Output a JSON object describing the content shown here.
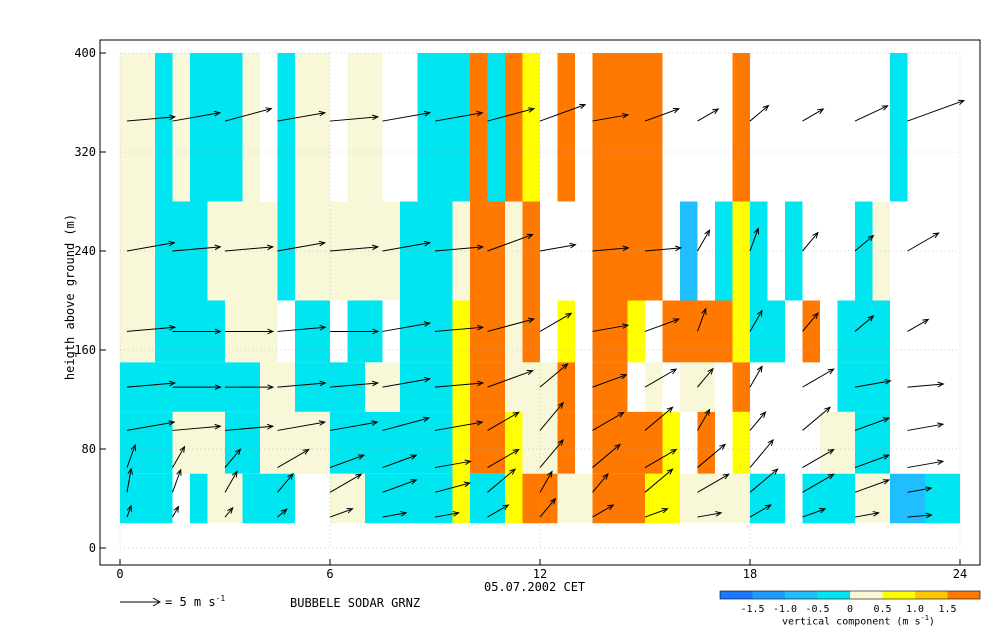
{
  "chart_data": {
    "type": "heatmap",
    "title": "",
    "xlabel": "05.07.2002 CET",
    "ylabel": "heigth above ground (m)",
    "station": "BUBBELE SODAR GRNZ",
    "xlim": [
      0,
      24
    ],
    "ylim": [
      0,
      400
    ],
    "xticks": [
      "0",
      "6",
      "12",
      "18",
      "24"
    ],
    "yticks": [
      "0",
      "80",
      "160",
      "240",
      "320",
      "400"
    ],
    "grid": true,
    "wind_reference": {
      "label": "= 5 m s",
      "superscript": "-1",
      "speed_ms": 5
    },
    "colorbar": {
      "title": "vertical component (m s",
      "title_super": "-1",
      "title_close": ")",
      "tick_labels": [
        "-1.5",
        "-1.0",
        "-0.5",
        "0",
        "0.5",
        "1.0",
        "1.5"
      ],
      "tick_values": [
        -1.5,
        -1.0,
        -0.5,
        0,
        0.5,
        1.0,
        1.5
      ],
      "bins": [
        {
          "min": -2.0,
          "max": -1.5,
          "color": "#1e78ff"
        },
        {
          "min": -1.5,
          "max": -1.0,
          "color": "#1e9bff"
        },
        {
          "min": -1.0,
          "max": -0.5,
          "color": "#1ebeff"
        },
        {
          "min": -0.5,
          "max": 0.0,
          "color": "#00e6f0"
        },
        {
          "min": 0.0,
          "max": 0.5,
          "color": "#f8f8d8"
        },
        {
          "min": 0.5,
          "max": 1.0,
          "color": "#ffff00"
        },
        {
          "min": 1.0,
          "max": 1.5,
          "color": "#ffc800"
        },
        {
          "min": 1.5,
          "max": 2.0,
          "color": "#ff7800"
        }
      ]
    },
    "cells": [
      {
        "x0": 0,
        "x1": 1,
        "y0": 280,
        "y1": 400,
        "value": 0.2
      },
      {
        "x0": 1,
        "x1": 1.5,
        "y0": 280,
        "y1": 400,
        "value": -0.3
      },
      {
        "x0": 1.5,
        "x1": 2,
        "y0": 280,
        "y1": 400,
        "value": 0.2
      },
      {
        "x0": 2,
        "x1": 2.5,
        "y0": 280,
        "y1": 400,
        "value": -0.3
      },
      {
        "x0": 2.5,
        "x1": 3.5,
        "y0": 280,
        "y1": 400,
        "value": -0.3
      },
      {
        "x0": 3.5,
        "x1": 4,
        "y0": 280,
        "y1": 400,
        "value": 0.2
      },
      {
        "x0": 4.5,
        "x1": 5,
        "y0": 280,
        "y1": 400,
        "value": -0.3
      },
      {
        "x0": 5,
        "x1": 6,
        "y0": 280,
        "y1": 400,
        "value": 0.2
      },
      {
        "x0": 6.5,
        "x1": 7.5,
        "y0": 280,
        "y1": 400,
        "value": 0.2
      },
      {
        "x0": 8.5,
        "x1": 10,
        "y0": 280,
        "y1": 400,
        "value": -0.3
      },
      {
        "x0": 10,
        "x1": 10.5,
        "y0": 280,
        "y1": 400,
        "value": 1.7
      },
      {
        "x0": 10.5,
        "x1": 11,
        "y0": 280,
        "y1": 400,
        "value": -0.3
      },
      {
        "x0": 11,
        "x1": 11.5,
        "y0": 280,
        "y1": 400,
        "value": 1.7
      },
      {
        "x0": 11.5,
        "x1": 12,
        "y0": 280,
        "y1": 400,
        "value": 0.7
      },
      {
        "x0": 12.5,
        "x1": 13,
        "y0": 280,
        "y1": 400,
        "value": 1.7
      },
      {
        "x0": 13.5,
        "x1": 15.5,
        "y0": 280,
        "y1": 400,
        "value": 1.7
      },
      {
        "x0": 17.5,
        "x1": 18,
        "y0": 280,
        "y1": 400,
        "value": 1.7
      },
      {
        "x0": 22,
        "x1": 22.5,
        "y0": 280,
        "y1": 400,
        "value": -0.3
      },
      {
        "x0": 0,
        "x1": 1,
        "y0": 200,
        "y1": 280,
        "value": 0.2
      },
      {
        "x0": 1,
        "x1": 2.5,
        "y0": 200,
        "y1": 280,
        "value": -0.3
      },
      {
        "x0": 2.5,
        "x1": 4.5,
        "y0": 200,
        "y1": 280,
        "value": 0.2
      },
      {
        "x0": 4.5,
        "x1": 5,
        "y0": 200,
        "y1": 280,
        "value": -0.3
      },
      {
        "x0": 5,
        "x1": 8,
        "y0": 200,
        "y1": 280,
        "value": 0.2
      },
      {
        "x0": 8,
        "x1": 9.5,
        "y0": 200,
        "y1": 280,
        "value": -0.3
      },
      {
        "x0": 9.5,
        "x1": 10,
        "y0": 200,
        "y1": 280,
        "value": 0.2
      },
      {
        "x0": 10,
        "x1": 11,
        "y0": 200,
        "y1": 280,
        "value": 1.7
      },
      {
        "x0": 11,
        "x1": 11.5,
        "y0": 200,
        "y1": 280,
        "value": 0.2
      },
      {
        "x0": 11.5,
        "x1": 12,
        "y0": 200,
        "y1": 280,
        "value": 1.7
      },
      {
        "x0": 13.5,
        "x1": 15.5,
        "y0": 200,
        "y1": 280,
        "value": 1.7
      },
      {
        "x0": 16,
        "x1": 16.5,
        "y0": 200,
        "y1": 280,
        "value": -0.8
      },
      {
        "x0": 17,
        "x1": 17.5,
        "y0": 200,
        "y1": 280,
        "value": -0.3
      },
      {
        "x0": 17.5,
        "x1": 18,
        "y0": 200,
        "y1": 280,
        "value": 0.7
      },
      {
        "x0": 18,
        "x1": 18.5,
        "y0": 200,
        "y1": 280,
        "value": -0.3
      },
      {
        "x0": 19,
        "x1": 19.5,
        "y0": 200,
        "y1": 280,
        "value": -0.3
      },
      {
        "x0": 21,
        "x1": 21.5,
        "y0": 200,
        "y1": 280,
        "value": -0.3
      },
      {
        "x0": 21.5,
        "x1": 22,
        "y0": 200,
        "y1": 280,
        "value": 0.2
      },
      {
        "x0": 0,
        "x1": 1,
        "y0": 150,
        "y1": 200,
        "value": 0.2
      },
      {
        "x0": 1,
        "x1": 3,
        "y0": 150,
        "y1": 200,
        "value": -0.3
      },
      {
        "x0": 3,
        "x1": 4.5,
        "y0": 150,
        "y1": 200,
        "value": 0.2
      },
      {
        "x0": 5,
        "x1": 6,
        "y0": 150,
        "y1": 200,
        "value": -0.3
      },
      {
        "x0": 6.5,
        "x1": 7.5,
        "y0": 150,
        "y1": 200,
        "value": -0.3
      },
      {
        "x0": 8,
        "x1": 9.5,
        "y0": 150,
        "y1": 200,
        "value": -0.3
      },
      {
        "x0": 9.5,
        "x1": 10,
        "y0": 150,
        "y1": 200,
        "value": 0.7
      },
      {
        "x0": 10,
        "x1": 11,
        "y0": 150,
        "y1": 200,
        "value": 1.7
      },
      {
        "x0": 11,
        "x1": 11.5,
        "y0": 150,
        "y1": 200,
        "value": 0.2
      },
      {
        "x0": 11.5,
        "x1": 12,
        "y0": 150,
        "y1": 200,
        "value": 1.7
      },
      {
        "x0": 12.5,
        "x1": 13,
        "y0": 150,
        "y1": 200,
        "value": 0.7
      },
      {
        "x0": 13.5,
        "x1": 14.5,
        "y0": 150,
        "y1": 200,
        "value": 1.7
      },
      {
        "x0": 14.5,
        "x1": 15,
        "y0": 150,
        "y1": 200,
        "value": 0.7
      },
      {
        "x0": 15.5,
        "x1": 17.5,
        "y0": 150,
        "y1": 200,
        "value": 1.7
      },
      {
        "x0": 17.5,
        "x1": 18,
        "y0": 150,
        "y1": 200,
        "value": 0.7
      },
      {
        "x0": 18,
        "x1": 19,
        "y0": 150,
        "y1": 200,
        "value": -0.3
      },
      {
        "x0": 19.5,
        "x1": 20,
        "y0": 150,
        "y1": 200,
        "value": 1.7
      },
      {
        "x0": 20.5,
        "x1": 22,
        "y0": 150,
        "y1": 200,
        "value": -0.3
      },
      {
        "x0": 0,
        "x1": 4,
        "y0": 110,
        "y1": 150,
        "value": -0.3
      },
      {
        "x0": 4,
        "x1": 5,
        "y0": 110,
        "y1": 150,
        "value": 0.2
      },
      {
        "x0": 5,
        "x1": 7,
        "y0": 110,
        "y1": 150,
        "value": -0.3
      },
      {
        "x0": 7,
        "x1": 8,
        "y0": 110,
        "y1": 150,
        "value": 0.2
      },
      {
        "x0": 8,
        "x1": 9.5,
        "y0": 110,
        "y1": 150,
        "value": -0.3
      },
      {
        "x0": 9.5,
        "x1": 10,
        "y0": 110,
        "y1": 150,
        "value": 0.7
      },
      {
        "x0": 10,
        "x1": 11,
        "y0": 110,
        "y1": 150,
        "value": 1.7
      },
      {
        "x0": 11,
        "x1": 12.5,
        "y0": 110,
        "y1": 150,
        "value": 0.2
      },
      {
        "x0": 12.5,
        "x1": 13,
        "y0": 110,
        "y1": 150,
        "value": 1.7
      },
      {
        "x0": 13.5,
        "x1": 14.5,
        "y0": 110,
        "y1": 150,
        "value": 1.7
      },
      {
        "x0": 15,
        "x1": 15.5,
        "y0": 110,
        "y1": 150,
        "value": 0.2
      },
      {
        "x0": 16,
        "x1": 17,
        "y0": 110,
        "y1": 150,
        "value": 0.2
      },
      {
        "x0": 17.5,
        "x1": 18,
        "y0": 110,
        "y1": 150,
        "value": 1.7
      },
      {
        "x0": 20.5,
        "x1": 22,
        "y0": 110,
        "y1": 150,
        "value": -0.3
      },
      {
        "x0": 0,
        "x1": 1.5,
        "y0": 60,
        "y1": 110,
        "value": -0.3
      },
      {
        "x0": 1.5,
        "x1": 3,
        "y0": 60,
        "y1": 110,
        "value": 0.2
      },
      {
        "x0": 3,
        "x1": 4,
        "y0": 60,
        "y1": 110,
        "value": -0.3
      },
      {
        "x0": 4,
        "x1": 6,
        "y0": 60,
        "y1": 110,
        "value": 0.2
      },
      {
        "x0": 6,
        "x1": 7,
        "y0": 60,
        "y1": 110,
        "value": -0.3
      },
      {
        "x0": 7,
        "x1": 9.5,
        "y0": 60,
        "y1": 110,
        "value": -0.3
      },
      {
        "x0": 9.5,
        "x1": 10,
        "y0": 60,
        "y1": 110,
        "value": 0.7
      },
      {
        "x0": 10,
        "x1": 11,
        "y0": 60,
        "y1": 110,
        "value": 1.7
      },
      {
        "x0": 11,
        "x1": 11.5,
        "y0": 60,
        "y1": 110,
        "value": 0.7
      },
      {
        "x0": 11.5,
        "x1": 12.5,
        "y0": 60,
        "y1": 110,
        "value": 0.2
      },
      {
        "x0": 12.5,
        "x1": 13,
        "y0": 60,
        "y1": 110,
        "value": 1.7
      },
      {
        "x0": 13.5,
        "x1": 15.5,
        "y0": 60,
        "y1": 110,
        "value": 1.7
      },
      {
        "x0": 15.5,
        "x1": 16,
        "y0": 60,
        "y1": 110,
        "value": 0.7
      },
      {
        "x0": 16.5,
        "x1": 17,
        "y0": 60,
        "y1": 110,
        "value": 1.7
      },
      {
        "x0": 17.5,
        "x1": 18,
        "y0": 60,
        "y1": 110,
        "value": 0.7
      },
      {
        "x0": 20,
        "x1": 21,
        "y0": 60,
        "y1": 110,
        "value": 0.2
      },
      {
        "x0": 21,
        "x1": 22,
        "y0": 60,
        "y1": 110,
        "value": -0.3
      },
      {
        "x0": 0,
        "x1": 1.5,
        "y0": 20,
        "y1": 60,
        "value": -0.3
      },
      {
        "x0": 2,
        "x1": 2.5,
        "y0": 20,
        "y1": 60,
        "value": -0.3
      },
      {
        "x0": 2.5,
        "x1": 3.5,
        "y0": 20,
        "y1": 60,
        "value": 0.2
      },
      {
        "x0": 3.5,
        "x1": 4,
        "y0": 20,
        "y1": 60,
        "value": -0.3
      },
      {
        "x0": 4,
        "x1": 5,
        "y0": 20,
        "y1": 60,
        "value": -0.3
      },
      {
        "x0": 6,
        "x1": 7,
        "y0": 20,
        "y1": 60,
        "value": 0.2
      },
      {
        "x0": 7,
        "x1": 9.5,
        "y0": 20,
        "y1": 60,
        "value": -0.3
      },
      {
        "x0": 9.5,
        "x1": 10,
        "y0": 20,
        "y1": 60,
        "value": 0.7
      },
      {
        "x0": 10,
        "x1": 11,
        "y0": 20,
        "y1": 60,
        "value": -0.3
      },
      {
        "x0": 11,
        "x1": 11.5,
        "y0": 20,
        "y1": 60,
        "value": 0.7
      },
      {
        "x0": 11.5,
        "x1": 12.5,
        "y0": 20,
        "y1": 60,
        "value": 1.7
      },
      {
        "x0": 12.5,
        "x1": 13.5,
        "y0": 20,
        "y1": 60,
        "value": 0.2
      },
      {
        "x0": 13.5,
        "x1": 15,
        "y0": 20,
        "y1": 60,
        "value": 1.7
      },
      {
        "x0": 15,
        "x1": 16,
        "y0": 20,
        "y1": 60,
        "value": 0.7
      },
      {
        "x0": 16,
        "x1": 18,
        "y0": 20,
        "y1": 60,
        "value": 0.2
      },
      {
        "x0": 18,
        "x1": 19,
        "y0": 20,
        "y1": 60,
        "value": -0.3
      },
      {
        "x0": 19.5,
        "x1": 21,
        "y0": 20,
        "y1": 60,
        "value": -0.3
      },
      {
        "x0": 21,
        "x1": 22,
        "y0": 20,
        "y1": 60,
        "value": 0.2
      },
      {
        "x0": 22,
        "x1": 23,
        "y0": 20,
        "y1": 60,
        "value": -0.8
      },
      {
        "x0": 23,
        "x1": 24,
        "y0": 20,
        "y1": 60,
        "value": -0.3
      }
    ],
    "wind_rows": [
      {
        "height": 345,
        "x": [
          0.2,
          1.5,
          3,
          4.5,
          6,
          7.5,
          9,
          10.5,
          12,
          13.5,
          15,
          16.5,
          18,
          19.5,
          21,
          22.5
        ],
        "dir": [
          95,
          100,
          105,
          100,
          95,
          100,
          100,
          105,
          110,
          100,
          110,
          120,
          130,
          120,
          115,
          110
        ],
        "speed": [
          4,
          4,
          4,
          4,
          4,
          4,
          4,
          4,
          4,
          3,
          3,
          2,
          2,
          2,
          3,
          5
        ]
      },
      {
        "height": 240,
        "x": [
          0.2,
          1.5,
          3,
          4.5,
          6,
          7.5,
          9,
          10.5,
          12,
          13.5,
          15,
          16.5,
          18,
          19.5,
          21,
          22.5
        ],
        "dir": [
          100,
          95,
          95,
          100,
          95,
          100,
          95,
          110,
          100,
          95,
          95,
          150,
          160,
          140,
          130,
          120
        ],
        "speed": [
          4,
          4,
          4,
          4,
          4,
          4,
          4,
          4,
          3,
          3,
          3,
          2,
          2,
          2,
          2,
          3
        ]
      },
      {
        "height": 175,
        "x": [
          0.2,
          1.5,
          3,
          4.5,
          6,
          7.5,
          9,
          10.5,
          12,
          13.5,
          15,
          16.5,
          18,
          19.5,
          21,
          22.5
        ],
        "dir": [
          95,
          90,
          90,
          95,
          90,
          100,
          95,
          105,
          120,
          100,
          110,
          160,
          150,
          140,
          130,
          120
        ],
        "speed": [
          4,
          4,
          4,
          4,
          4,
          4,
          4,
          4,
          3,
          3,
          3,
          2,
          2,
          2,
          2,
          2
        ]
      },
      {
        "height": 130,
        "x": [
          0.2,
          1.5,
          3,
          4.5,
          6,
          7.5,
          9,
          10.5,
          12,
          13.5,
          15,
          16.5,
          18,
          19.5,
          21,
          22.5
        ],
        "dir": [
          95,
          90,
          90,
          95,
          95,
          100,
          95,
          110,
          130,
          110,
          120,
          140,
          150,
          120,
          100,
          95
        ],
        "speed": [
          4,
          4,
          4,
          4,
          4,
          4,
          4,
          4,
          3,
          3,
          3,
          2,
          2,
          3,
          3,
          3
        ]
      },
      {
        "height": 95,
        "x": [
          0.2,
          1.5,
          3,
          4.5,
          6,
          7.5,
          9,
          10.5,
          12,
          13.5,
          15,
          16.5,
          18,
          19.5,
          21,
          22.5
        ],
        "dir": [
          100,
          95,
          95,
          100,
          100,
          105,
          100,
          120,
          140,
          120,
          130,
          150,
          140,
          130,
          110,
          100
        ],
        "speed": [
          4,
          4,
          4,
          4,
          4,
          4,
          4,
          3,
          3,
          3,
          3,
          2,
          2,
          3,
          3,
          3
        ]
      },
      {
        "height": 65,
        "x": [
          0.2,
          1.5,
          3,
          4.5,
          6,
          7.5,
          9,
          10.5,
          12,
          13.5,
          15,
          16.5,
          18,
          19.5,
          21,
          22.5
        ],
        "dir": [
          160,
          150,
          140,
          120,
          110,
          110,
          100,
          120,
          140,
          130,
          120,
          130,
          140,
          120,
          110,
          100
        ],
        "speed": [
          2,
          2,
          2,
          3,
          3,
          3,
          3,
          3,
          3,
          3,
          3,
          3,
          3,
          3,
          3,
          3
        ]
      },
      {
        "height": 45,
        "x": [
          0.2,
          1.5,
          3,
          4.5,
          6,
          7.5,
          9,
          10.5,
          12,
          13.5,
          15,
          16.5,
          18,
          19.5,
          21,
          22.5
        ],
        "dir": [
          170,
          160,
          150,
          140,
          120,
          110,
          105,
          130,
          150,
          140,
          130,
          120,
          130,
          120,
          110,
          100
        ],
        "speed": [
          2,
          2,
          2,
          2,
          3,
          3,
          3,
          3,
          2,
          2,
          3,
          3,
          3,
          3,
          3,
          2
        ]
      },
      {
        "height": 25,
        "x": [
          0.2,
          1.5,
          3,
          4.5,
          6,
          7.5,
          9,
          10.5,
          12,
          13.5,
          15,
          16.5,
          18,
          19.5,
          21,
          22.5
        ],
        "dir": [
          160,
          150,
          140,
          130,
          110,
          100,
          100,
          120,
          140,
          120,
          110,
          100,
          120,
          110,
          100,
          95
        ],
        "speed": [
          1,
          1,
          1,
          1,
          2,
          2,
          2,
          2,
          2,
          2,
          2,
          2,
          2,
          2,
          2,
          2
        ]
      }
    ]
  }
}
